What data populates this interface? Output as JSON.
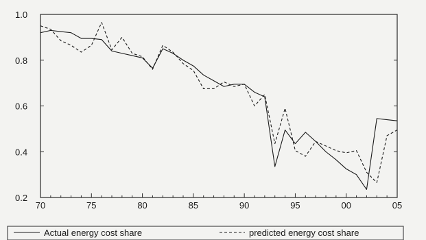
{
  "chart_data": {
    "type": "line",
    "title": "",
    "xlabel": "",
    "ylabel": "",
    "x": [
      1970,
      1971,
      1972,
      1973,
      1974,
      1975,
      1976,
      1977,
      1978,
      1979,
      1980,
      1981,
      1982,
      1983,
      1984,
      1985,
      1986,
      1987,
      1988,
      1989,
      1990,
      1991,
      1992,
      1993,
      1994,
      1995,
      1996,
      1997,
      1998,
      1999,
      2000,
      2001,
      2002,
      2003,
      2004,
      2005
    ],
    "xlim": [
      1970,
      2005
    ],
    "ylim": [
      0.2,
      1.0
    ],
    "x_ticks": [
      {
        "value": 1970,
        "label": "70"
      },
      {
        "value": 1975,
        "label": "75"
      },
      {
        "value": 1980,
        "label": "80"
      },
      {
        "value": 1985,
        "label": "85"
      },
      {
        "value": 1990,
        "label": "90"
      },
      {
        "value": 1995,
        "label": "95"
      },
      {
        "value": 2000,
        "label": "00"
      },
      {
        "value": 2005,
        "label": "05"
      }
    ],
    "y_ticks": [
      {
        "value": 0.2,
        "label": "0.2"
      },
      {
        "value": 0.4,
        "label": "0.4"
      },
      {
        "value": 0.6,
        "label": "0.6"
      },
      {
        "value": 0.8,
        "label": "0.8"
      },
      {
        "value": 1.0,
        "label": "1.0"
      }
    ],
    "grid": false,
    "legend_position": "bottom",
    "series": [
      {
        "name": "Actual energy cost share",
        "style": "solid",
        "color": "#1a1a1a",
        "values": [
          0.92,
          0.93,
          0.925,
          0.92,
          0.895,
          0.895,
          0.89,
          0.84,
          0.83,
          0.82,
          0.81,
          0.765,
          0.85,
          0.83,
          0.8,
          0.775,
          0.735,
          0.71,
          0.685,
          0.695,
          0.695,
          0.66,
          0.64,
          0.335,
          0.495,
          0.435,
          0.485,
          0.445,
          0.4,
          0.365,
          0.325,
          0.3,
          0.235,
          0.545,
          0.54,
          0.535
        ]
      },
      {
        "name": "predicted energy cost share",
        "style": "dashed",
        "color": "#1a1a1a",
        "values": [
          0.95,
          0.935,
          0.885,
          0.865,
          0.835,
          0.865,
          0.965,
          0.845,
          0.9,
          0.83,
          0.815,
          0.76,
          0.865,
          0.835,
          0.785,
          0.755,
          0.675,
          0.675,
          0.705,
          0.685,
          0.695,
          0.6,
          0.65,
          0.435,
          0.59,
          0.405,
          0.38,
          0.445,
          0.425,
          0.405,
          0.395,
          0.405,
          0.31,
          0.265,
          0.47,
          0.495
        ]
      }
    ]
  },
  "colors": {
    "background": "#f3f3f1",
    "line": "#1a1a1a",
    "frame": "#2a2a2a"
  }
}
